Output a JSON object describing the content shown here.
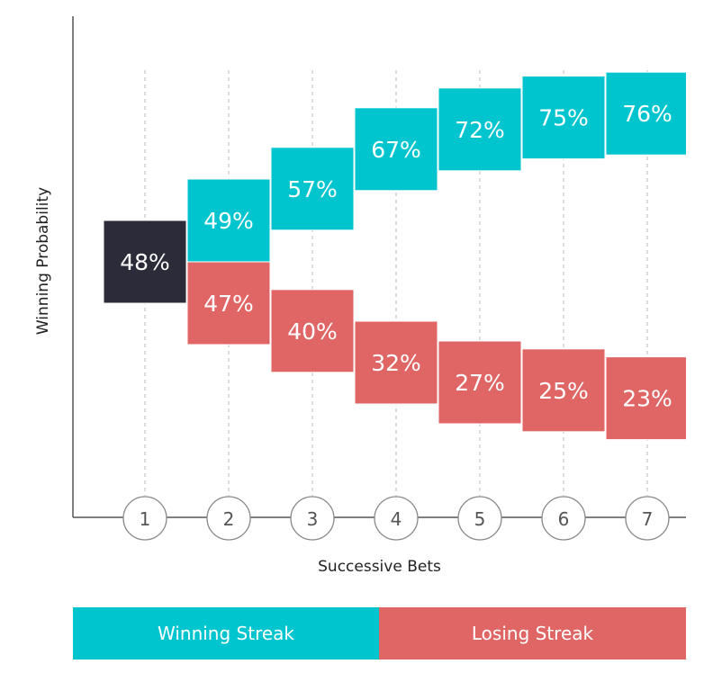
{
  "chart_data": {
    "type": "bar",
    "title": "",
    "xlabel": "Successive Bets",
    "ylabel": "Winning Probability",
    "categories": [
      "1",
      "2",
      "3",
      "4",
      "5",
      "6",
      "7"
    ],
    "start": {
      "name": "Start",
      "value": 48,
      "label": "48%"
    },
    "series": [
      {
        "name": "Winning Streak",
        "x": [
          2,
          3,
          4,
          5,
          6,
          7
        ],
        "values": [
          49,
          57,
          67,
          72,
          75,
          76
        ],
        "labels": [
          "49%",
          "57%",
          "67%",
          "72%",
          "75%",
          "76%"
        ]
      },
      {
        "name": "Losing Streak",
        "x": [
          2,
          3,
          4,
          5,
          6,
          7
        ],
        "values": [
          47,
          40,
          32,
          27,
          25,
          23
        ],
        "labels": [
          "47%",
          "40%",
          "32%",
          "27%",
          "25%",
          "23%"
        ]
      }
    ],
    "legend": [
      "Winning Streak",
      "Losing Streak"
    ],
    "legend_placement": "bottom"
  },
  "colors": {
    "win": "#00C5CF",
    "lose": "#E06666",
    "start": "#2C2B3A"
  }
}
